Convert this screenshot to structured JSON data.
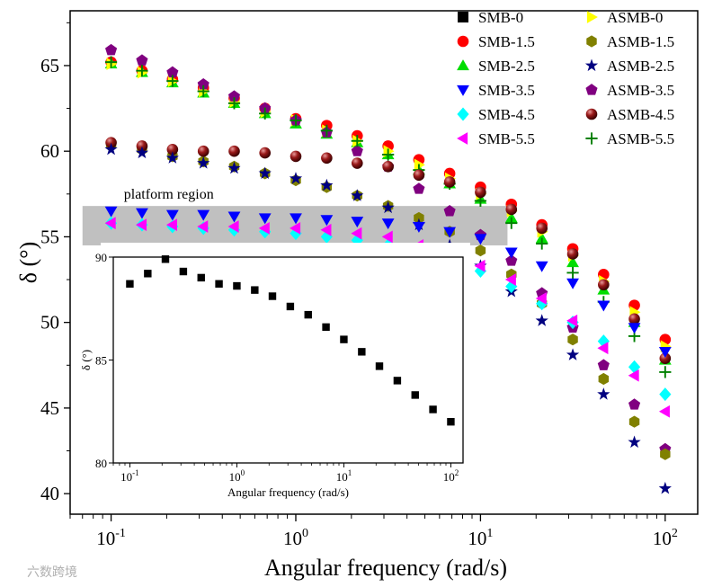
{
  "chart_data": [
    {
      "type": "scatter",
      "xscale": "log",
      "title": "",
      "xlabel": "Angular frequency (rad/s)",
      "ylabel": "δ (°)",
      "xlim": [
        0.06,
        150
      ],
      "ylim": [
        38.8,
        68.2
      ],
      "yticks": [
        40,
        45,
        50,
        55,
        60,
        65
      ],
      "xticks": [
        0.1,
        1,
        10,
        100
      ],
      "annotation": "platform region",
      "platform_band": {
        "y_range": [
          54.5,
          56.8
        ],
        "x_range": [
          0.07,
          14
        ]
      },
      "legend_position": "top-right",
      "x": [
        0.1,
        0.147,
        0.215,
        0.316,
        0.464,
        0.681,
        1.0,
        1.47,
        2.15,
        3.16,
        4.64,
        6.81,
        10.0,
        14.7,
        21.5,
        31.6,
        46.4,
        68.1,
        100.0
      ],
      "series": [
        {
          "name": "SMB-0",
          "marker": "square",
          "color": "#000000",
          "values": []
        },
        {
          "name": "SMB-1.5",
          "marker": "circle",
          "color": "#ff0000",
          "values": [
            65.2,
            64.7,
            64.2,
            63.7,
            63.1,
            62.5,
            61.9,
            61.5,
            60.9,
            60.3,
            59.5,
            58.7,
            57.9,
            56.9,
            55.7,
            54.3,
            52.8,
            51.0,
            49.0
          ]
        },
        {
          "name": "SMB-2.5",
          "marker": "triangle-up",
          "color": "#00dd00",
          "values": [
            65.1,
            64.6,
            64.0,
            63.4,
            62.8,
            62.2,
            61.6,
            61.0,
            60.5,
            59.8,
            58.9,
            58.1,
            57.2,
            56.1,
            54.9,
            53.5,
            51.9,
            50.0,
            47.8
          ]
        },
        {
          "name": "SMB-3.5",
          "marker": "triangle-down",
          "color": "#0000ff",
          "values": [
            56.5,
            56.4,
            56.3,
            56.3,
            56.2,
            56.1,
            56.1,
            56.0,
            55.9,
            55.8,
            55.6,
            55.3,
            54.9,
            54.1,
            53.3,
            52.3,
            51.0,
            49.7,
            48.3
          ]
        },
        {
          "name": "SMB-4.5",
          "marker": "diamond",
          "color": "#00ffff",
          "values": [
            55.8,
            55.7,
            55.6,
            55.5,
            55.4,
            55.3,
            55.2,
            55.0,
            54.8,
            54.5,
            54.1,
            53.6,
            53.0,
            52.1,
            51.1,
            50.0,
            48.9,
            47.4,
            45.8
          ]
        },
        {
          "name": "SMB-5.5",
          "marker": "triangle-left",
          "color": "#ff00ff",
          "values": [
            55.8,
            55.7,
            55.7,
            55.6,
            55.6,
            55.5,
            55.5,
            55.4,
            55.2,
            55.0,
            54.5,
            54.0,
            53.3,
            52.5,
            51.4,
            50.1,
            48.5,
            46.9,
            44.8
          ]
        },
        {
          "name": "ASMB-0",
          "marker": "triangle-right",
          "color": "#ffff00",
          "values": [
            65.1,
            64.6,
            64.1,
            63.5,
            62.9,
            62.3,
            61.8,
            61.2,
            60.6,
            60.0,
            59.2,
            58.4,
            57.5,
            56.5,
            55.3,
            53.9,
            52.4,
            50.6,
            48.6
          ]
        },
        {
          "name": "ASMB-1.5",
          "marker": "hexagon",
          "color": "#808000",
          "values": [
            60.4,
            60.1,
            59.7,
            59.4,
            59.1,
            58.7,
            58.3,
            57.9,
            57.4,
            56.8,
            56.1,
            55.3,
            54.2,
            52.8,
            51.1,
            49.0,
            46.7,
            44.2,
            42.3
          ]
        },
        {
          "name": "ASMB-2.5",
          "marker": "star",
          "color": "#000080",
          "values": [
            60.1,
            59.9,
            59.6,
            59.3,
            59.0,
            58.7,
            58.4,
            58.0,
            57.4,
            56.7,
            55.7,
            54.5,
            53.3,
            51.8,
            50.1,
            48.1,
            45.8,
            43.0,
            40.3
          ]
        },
        {
          "name": "ASMB-3.5",
          "marker": "pentagon",
          "color": "#800080",
          "values": [
            65.9,
            65.3,
            64.6,
            63.9,
            63.2,
            62.5,
            61.8,
            61.1,
            60.0,
            59.1,
            57.8,
            56.5,
            55.1,
            53.6,
            51.7,
            49.7,
            47.5,
            45.2,
            42.6
          ]
        },
        {
          "name": "ASMB-4.5",
          "marker": "sphere",
          "color": "#800000",
          "values": [
            60.5,
            60.3,
            60.1,
            60.0,
            60.0,
            59.9,
            59.7,
            59.6,
            59.3,
            59.1,
            58.6,
            58.2,
            57.6,
            56.6,
            55.5,
            54.0,
            52.2,
            50.2,
            47.9
          ]
        },
        {
          "name": "ASMB-5.5",
          "marker": "plus",
          "color": "#008000",
          "values": [
            65.2,
            64.7,
            64.1,
            63.5,
            62.8,
            62.2,
            61.8,
            61.2,
            60.6,
            59.8,
            58.9,
            58.1,
            57.1,
            55.8,
            54.6,
            52.9,
            51.2,
            49.2,
            47.1
          ]
        }
      ]
    },
    {
      "type": "scatter",
      "xscale": "log",
      "title": "",
      "xlabel": "Angular frequency (rad/s)",
      "ylabel": "δ (°)",
      "xlim": [
        0.07,
        130
      ],
      "ylim": [
        80,
        90
      ],
      "yticks": [
        80,
        85,
        90
      ],
      "xticks": [
        0.1,
        1,
        10,
        100
      ],
      "series": [
        {
          "name": "SMB-0",
          "marker": "square",
          "color": "#000000",
          "x": [
            0.1,
            0.147,
            0.215,
            0.316,
            0.464,
            0.681,
            1.0,
            1.47,
            2.15,
            3.16,
            4.64,
            6.81,
            10.0,
            14.7,
            21.5,
            31.6,
            46.4,
            68.1,
            100.0
          ],
          "values": [
            88.7,
            89.2,
            89.9,
            89.3,
            89.0,
            88.7,
            88.6,
            88.4,
            88.1,
            87.6,
            87.2,
            86.6,
            86.0,
            85.4,
            84.7,
            84.0,
            83.3,
            82.6,
            82.0
          ]
        }
      ]
    }
  ],
  "watermark": "六数跨境"
}
